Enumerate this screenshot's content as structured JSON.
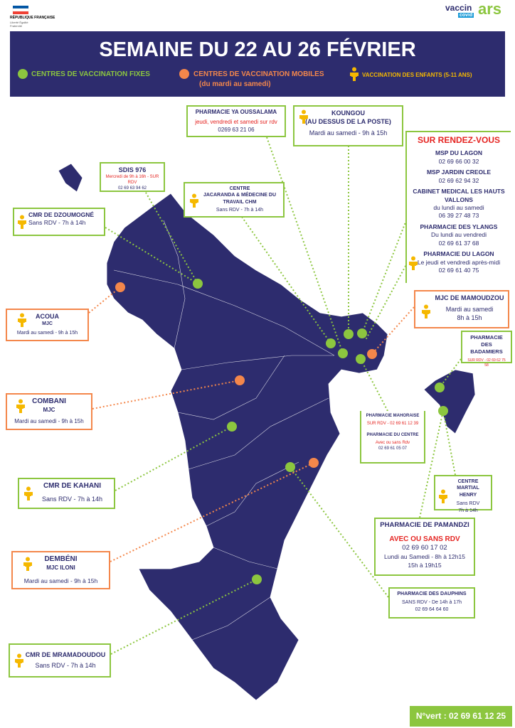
{
  "header": {
    "republic": "RÉPUBLIQUE FRANÇAISE",
    "motto": "Liberté Égalité Fraternité",
    "vaccin_logo": "vaccin",
    "covid_logo": "covid",
    "ars_logo": "ars"
  },
  "banner": {
    "title": "SEMAINE DU 22 AU 26 FÉVRIER",
    "legend": [
      {
        "label": "CENTRES DE VACCINATION FIXES"
      },
      {
        "label": "CENTRES DE VACCINATION MOBILES",
        "note": "(du mardi au samedi)"
      },
      {
        "label": "VACCINATION DES ENFANTS (5-11 ANS)"
      }
    ]
  },
  "sites": [
    {
      "lines": [
        "PHARMACIE YA OUSSALAMA",
        "jeudi, vendredi et samedi sur rdv",
        "0269 63 21 06"
      ]
    },
    {
      "lines": [
        "KOUNGOU",
        "(AU DESSUS DE LA POSTE)",
        "Mardi au samedi - 9h à 15h"
      ]
    },
    {
      "lines": [
        "SUR RENDEZ-VOUS",
        "MSP DU LAGON",
        "02 69 66 00 32",
        "MSP JARDIN CREOLE",
        "02 69 62 94 32",
        "CABINET MEDICAL LES HAUTS VALLONS",
        "du lundi au samedi",
        "06 39 27 48 73",
        "PHARMACIE DES YLANGS",
        "Du lundi au vendredi",
        "02 69 61 37 68",
        "PHARMACIE DU LAGON",
        "Le jeudi et vendredi après-midi",
        "02 69 61 40 75"
      ]
    },
    {
      "lines": [
        "SDIS 976",
        "Mercredi de 9h à 16h - SUR RDV",
        "02 69 63 94 62"
      ]
    },
    {
      "lines": [
        "CENTRE",
        "JACARANDA & MÉDECINE DU TRAVAIL CHM",
        "Sans RDV - 7h à 14h"
      ]
    },
    {
      "lines": [
        "CMR DE DZOUMOGNÉ",
        "Sans RDV - 7h à 14h"
      ]
    },
    {
      "lines": [
        "MJC DE MAMOUDZOU",
        "Mardi au samedi",
        "8h à 15h"
      ]
    },
    {
      "lines": [
        "ACOUA",
        "MJC",
        "Mardi au samedi - 9h à 15h"
      ]
    },
    {
      "lines": [
        "PHARMACIE DES BADAMIERS",
        "SUR RDV - 02 69 62 75 58"
      ]
    },
    {
      "lines": [
        "COMBANI",
        "MJC",
        "Mardi au samedi - 9h à 15h"
      ]
    },
    {
      "lines": [
        "PHARMACIE MAHORAISE",
        "SUR RDV - 02 69 61 12 39",
        "PHARMACIE DU CENTRE",
        "Avec ou sans Rdv",
        "02 69 61 05 07"
      ]
    },
    {
      "lines": [
        "CMR DE KAHANI",
        "Sans RDV - 7h à 14h"
      ]
    },
    {
      "lines": [
        "CENTRE",
        "MARTIAL HENRY",
        "Sans RDV",
        "7h à 14h"
      ]
    },
    {
      "lines": [
        "PHARMACIE DE PAMANDZI",
        "AVEC OU SANS RDV",
        "02 69 60 17 02",
        "Lundi au Samedi - 8h à 12h15",
        "15h  à 19h15"
      ]
    },
    {
      "lines": [
        "DEMBÉNI",
        "MJC ILONI",
        "Mardi au samedi - 9h à 15h"
      ]
    },
    {
      "lines": [
        "PHARMACIE DES DAUPHINS",
        "SANS RDV - De 14h à 17h",
        "02 69 64 64 60"
      ]
    },
    {
      "lines": [
        "CMR DE MRAMADOUDOU",
        "Sans RDV - 7h à 14h"
      ]
    }
  ],
  "hotline": "N°vert : 02 69 61 12 25"
}
